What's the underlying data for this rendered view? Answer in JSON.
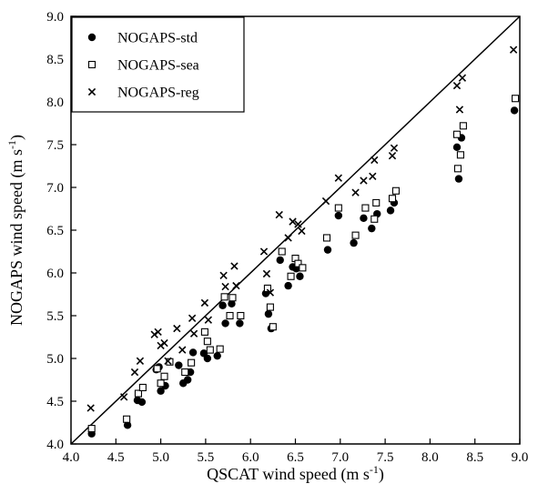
{
  "chart_data": {
    "type": "scatter",
    "title": "",
    "xlabel": "QSCAT wind speed (m s",
    "xlabel_sup": "-1",
    "xlabel_end": ")",
    "ylabel": "NOGAPS wind speed (m s",
    "ylabel_sup": "-1",
    "ylabel_end": ")",
    "xlim": [
      4.0,
      9.0
    ],
    "ylim": [
      4.0,
      9.0
    ],
    "xticks": [
      "4.0",
      "4.5",
      "5.0",
      "5.5",
      "6.0",
      "6.5",
      "7.0",
      "7.5",
      "8.0",
      "8.5",
      "9.0"
    ],
    "yticks": [
      "4.0",
      "4.5",
      "5.0",
      "5.5",
      "6.0",
      "6.5",
      "7.0",
      "7.5",
      "8.0",
      "8.5",
      "9.0"
    ],
    "grid": false,
    "legend_position": "top-left",
    "reference_line": "y = x",
    "series": [
      {
        "name": "NOGAPS-std",
        "marker": "filled-circle",
        "points": [
          [
            4.23,
            4.12
          ],
          [
            4.63,
            4.22
          ],
          [
            4.74,
            4.51
          ],
          [
            4.79,
            4.49
          ],
          [
            4.95,
            4.87
          ],
          [
            4.98,
            4.9
          ],
          [
            5.0,
            4.62
          ],
          [
            5.05,
            4.68
          ],
          [
            5.2,
            4.92
          ],
          [
            5.25,
            4.71
          ],
          [
            5.3,
            4.75
          ],
          [
            5.33,
            4.84
          ],
          [
            5.36,
            5.07
          ],
          [
            5.48,
            5.06
          ],
          [
            5.52,
            5.0
          ],
          [
            5.63,
            5.03
          ],
          [
            5.69,
            5.62
          ],
          [
            5.72,
            5.41
          ],
          [
            5.79,
            5.64
          ],
          [
            5.88,
            5.41
          ],
          [
            6.17,
            5.76
          ],
          [
            6.2,
            5.52
          ],
          [
            6.23,
            5.35
          ],
          [
            6.33,
            6.15
          ],
          [
            6.42,
            5.85
          ],
          [
            6.47,
            6.07
          ],
          [
            6.51,
            6.05
          ],
          [
            6.55,
            5.96
          ],
          [
            6.86,
            6.27
          ],
          [
            6.98,
            6.67
          ],
          [
            7.15,
            6.35
          ],
          [
            7.26,
            6.64
          ],
          [
            7.35,
            6.52
          ],
          [
            7.41,
            6.69
          ],
          [
            7.56,
            6.73
          ],
          [
            7.6,
            6.82
          ],
          [
            8.3,
            7.47
          ],
          [
            8.32,
            7.1
          ],
          [
            8.35,
            7.58
          ],
          [
            8.94,
            7.9
          ]
        ]
      },
      {
        "name": "NOGAPS-sea",
        "marker": "open-square",
        "points": [
          [
            4.23,
            4.18
          ],
          [
            4.62,
            4.29
          ],
          [
            4.75,
            4.59
          ],
          [
            4.8,
            4.66
          ],
          [
            4.96,
            4.88
          ],
          [
            5.0,
            4.71
          ],
          [
            5.04,
            4.79
          ],
          [
            5.1,
            4.96
          ],
          [
            5.27,
            4.84
          ],
          [
            5.34,
            4.95
          ],
          [
            5.49,
            5.31
          ],
          [
            5.52,
            5.2
          ],
          [
            5.55,
            5.1
          ],
          [
            5.66,
            5.11
          ],
          [
            5.71,
            5.72
          ],
          [
            5.77,
            5.5
          ],
          [
            5.8,
            5.71
          ],
          [
            5.89,
            5.5
          ],
          [
            6.19,
            5.82
          ],
          [
            6.22,
            5.6
          ],
          [
            6.25,
            5.37
          ],
          [
            6.35,
            6.25
          ],
          [
            6.45,
            5.96
          ],
          [
            6.5,
            6.17
          ],
          [
            6.53,
            6.11
          ],
          [
            6.58,
            6.06
          ],
          [
            6.85,
            6.41
          ],
          [
            6.98,
            6.76
          ],
          [
            7.17,
            6.44
          ],
          [
            7.28,
            6.76
          ],
          [
            7.38,
            6.63
          ],
          [
            7.4,
            6.82
          ],
          [
            7.58,
            6.87
          ],
          [
            7.62,
            6.96
          ],
          [
            8.3,
            7.62
          ],
          [
            8.31,
            7.22
          ],
          [
            8.34,
            7.38
          ],
          [
            8.37,
            7.72
          ],
          [
            8.95,
            8.04
          ]
        ]
      },
      {
        "name": "NOGAPS-reg",
        "marker": "cross",
        "points": [
          [
            4.22,
            4.42
          ],
          [
            4.59,
            4.55
          ],
          [
            4.71,
            4.84
          ],
          [
            4.77,
            4.97
          ],
          [
            4.93,
            5.28
          ],
          [
            4.97,
            5.31
          ],
          [
            5.0,
            5.15
          ],
          [
            5.04,
            5.18
          ],
          [
            5.08,
            4.97
          ],
          [
            5.18,
            5.35
          ],
          [
            5.24,
            5.1
          ],
          [
            5.35,
            5.47
          ],
          [
            5.37,
            5.29
          ],
          [
            5.49,
            5.65
          ],
          [
            5.53,
            5.45
          ],
          [
            5.7,
            5.97
          ],
          [
            5.72,
            5.84
          ],
          [
            5.82,
            6.08
          ],
          [
            5.84,
            5.85
          ],
          [
            6.15,
            6.25
          ],
          [
            6.18,
            5.99
          ],
          [
            6.22,
            5.77
          ],
          [
            6.32,
            6.68
          ],
          [
            6.42,
            6.41
          ],
          [
            6.47,
            6.6
          ],
          [
            6.53,
            6.57
          ],
          [
            6.57,
            6.49
          ],
          [
            6.84,
            6.84
          ],
          [
            6.98,
            7.11
          ],
          [
            7.17,
            6.94
          ],
          [
            7.26,
            7.08
          ],
          [
            7.38,
            7.32
          ],
          [
            7.36,
            7.13
          ],
          [
            7.58,
            7.37
          ],
          [
            7.6,
            7.46
          ],
          [
            8.3,
            8.19
          ],
          [
            8.36,
            8.28
          ],
          [
            8.33,
            7.91
          ],
          [
            8.93,
            8.61
          ]
        ]
      }
    ]
  }
}
